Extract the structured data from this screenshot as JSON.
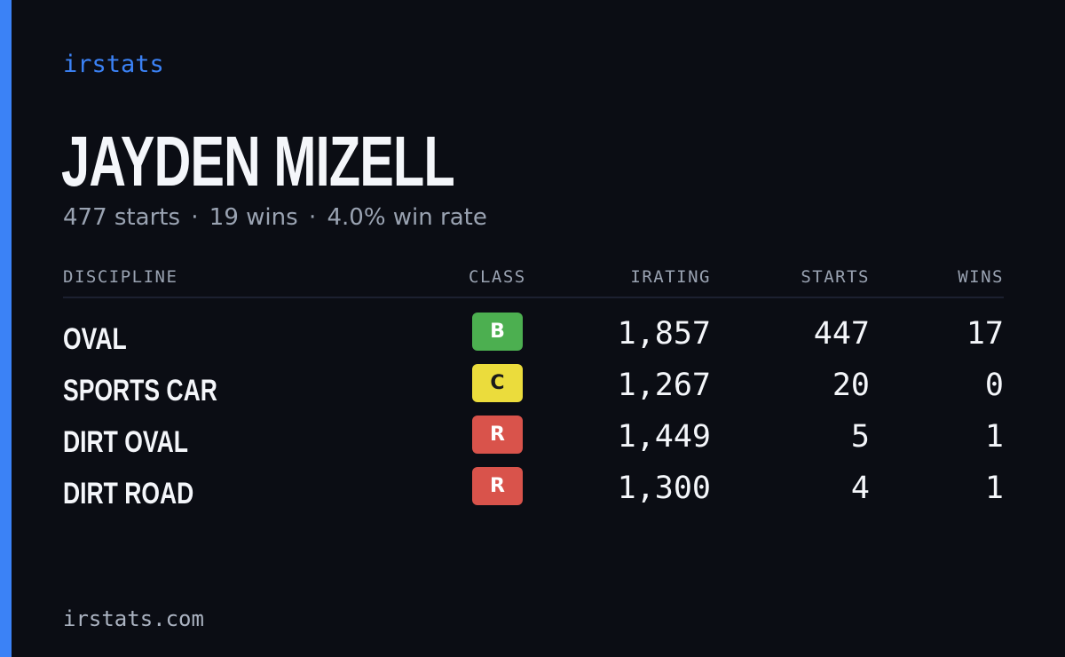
{
  "colors": {
    "background": "#0b0d14",
    "accent": "#3b82f6",
    "muted_text": "#9aa3b2",
    "class_b": "#4caf50",
    "class_c": "#ebdc3c",
    "class_r": "#d9534b"
  },
  "brand": {
    "name": "irstats"
  },
  "player": {
    "name": "JAYDEN MIZELL",
    "summary": {
      "starts": "477 starts",
      "wins": "19 wins",
      "win_rate": "4.0% win rate",
      "separator": "·"
    }
  },
  "table": {
    "headers": {
      "discipline": "DISCIPLINE",
      "class": "CLASS",
      "irating": "IRATING",
      "starts": "STARTS",
      "wins": "WINS"
    },
    "rows": [
      {
        "discipline": "OVAL",
        "class": "B",
        "irating": "1,857",
        "starts": "447",
        "wins": "17"
      },
      {
        "discipline": "SPORTS CAR",
        "class": "C",
        "irating": "1,267",
        "starts": "20",
        "wins": "0"
      },
      {
        "discipline": "DIRT OVAL",
        "class": "R",
        "irating": "1,449",
        "starts": "5",
        "wins": "1"
      },
      {
        "discipline": "DIRT ROAD",
        "class": "R",
        "irating": "1,300",
        "starts": "4",
        "wins": "1"
      }
    ]
  },
  "footer": {
    "domain": "irstats.com"
  }
}
